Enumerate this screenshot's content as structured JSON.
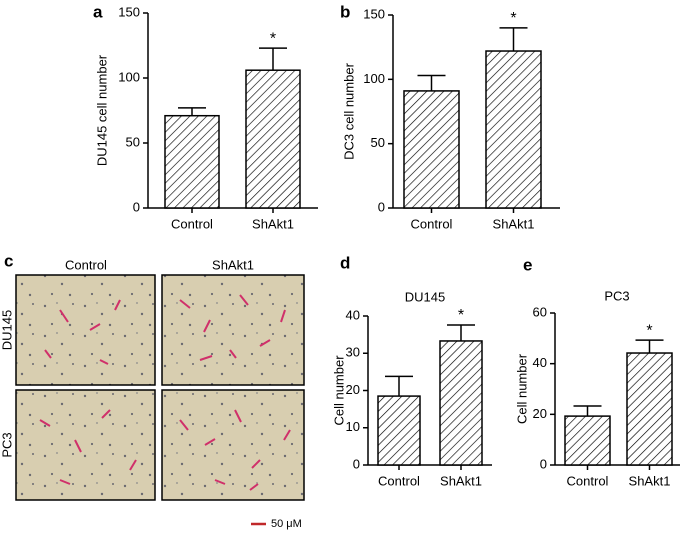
{
  "chart_data": [
    {
      "type": "bar",
      "panel_label": "a",
      "y_label": "DU145 cell number",
      "categories": [
        "Control",
        "ShAkt1"
      ],
      "values": [
        71,
        106
      ],
      "errors": [
        6,
        17
      ],
      "color": "#000000",
      "ylim": [
        0,
        150
      ],
      "yticks": [
        0,
        50,
        100,
        150
      ],
      "annotations": [
        {
          "text": "*",
          "category": 1
        }
      ]
    },
    {
      "type": "bar",
      "panel_label": "b",
      "y_label": "DC3 cell number",
      "categories": [
        "Control",
        "ShAkt1"
      ],
      "values": [
        91,
        122
      ],
      "errors": [
        12,
        18
      ],
      "color": "#000000",
      "ylim": [
        0,
        150
      ],
      "yticks": [
        0,
        50,
        100,
        150
      ],
      "annotations": [
        {
          "text": "*",
          "category": 1
        }
      ]
    },
    {
      "type": "bar",
      "panel_label": "d",
      "title": "DU145",
      "y_label": "Cell number",
      "categories": [
        "Control",
        "ShAkt1"
      ],
      "values": [
        18.5,
        33.3
      ],
      "errors": [
        5.3,
        4.3
      ],
      "color": "#000000",
      "ylim": [
        0,
        40
      ],
      "yticks": [
        0,
        10,
        20,
        30,
        40
      ],
      "annotations": [
        {
          "text": "*",
          "category": 1
        }
      ]
    },
    {
      "type": "bar",
      "panel_label": "e",
      "title": "PC3",
      "y_label": "Cell number",
      "categories": [
        "Control",
        "ShAkt1"
      ],
      "values": [
        19.3,
        44.2
      ],
      "errors": [
        4,
        5.1
      ],
      "color": "#000000",
      "ylim": [
        0,
        60
      ],
      "yticks": [
        0,
        20,
        40,
        60
      ],
      "annotations": [
        {
          "text": "*",
          "category": 1
        }
      ]
    }
  ],
  "panel_c": {
    "panel_label": "c",
    "columns": [
      "Control",
      "ShAkt1"
    ],
    "rows": [
      "DU145",
      "PC3"
    ],
    "scale_bar": "50 μM"
  }
}
